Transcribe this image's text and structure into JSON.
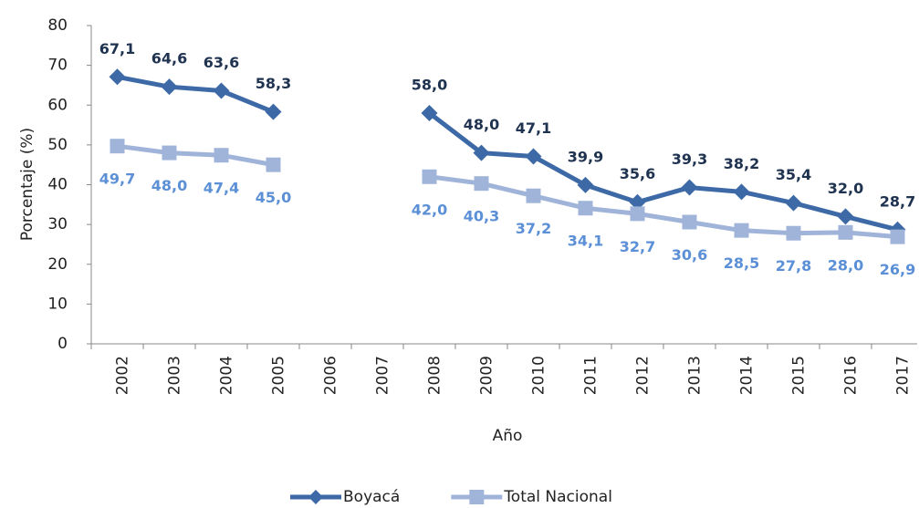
{
  "chart_data": {
    "type": "line",
    "x_label": "Año",
    "y_label": "Porcentaje (%)",
    "categories": [
      "2002",
      "2003",
      "2004",
      "2005",
      "2006",
      "2007",
      "2008",
      "2009",
      "2010",
      "2011",
      "2012",
      "2013",
      "2014",
      "2015",
      "2016",
      "2017"
    ],
    "ylim": [
      0,
      80
    ],
    "yticks": [
      0,
      10,
      20,
      30,
      40,
      50,
      60,
      70,
      80
    ],
    "legend": "bottom",
    "series": [
      {
        "name": "Boyacá",
        "color": "#3d6aa6",
        "label_color": "#1f3350",
        "marker": "diamond",
        "values": [
          67.1,
          64.6,
          63.6,
          58.3,
          null,
          null,
          58.0,
          48.0,
          47.1,
          39.9,
          35.6,
          39.3,
          38.2,
          35.4,
          32.0,
          28.7
        ],
        "value_labels": [
          "67,1",
          "64,6",
          "63,6",
          "58,3",
          null,
          null,
          "58,0",
          "48,0",
          "47,1",
          "39,9",
          "35,6",
          "39,3",
          "38,2",
          "35,4",
          "32,0",
          "28,7"
        ]
      },
      {
        "name": "Total Nacional",
        "color": "#a0b4da",
        "label_color": "#5b8fd6",
        "marker": "square",
        "values": [
          49.7,
          48.0,
          47.4,
          45.0,
          null,
          null,
          42.0,
          40.3,
          37.2,
          34.1,
          32.7,
          30.6,
          28.5,
          27.8,
          28.0,
          26.9
        ],
        "value_labels": [
          "49,7",
          "48,0",
          "47,4",
          "45,0",
          null,
          null,
          "42,0",
          "40,3",
          "37,2",
          "34,1",
          "32,7",
          "30,6",
          "28,5",
          "27,8",
          "28,0",
          "26,9"
        ]
      }
    ]
  }
}
